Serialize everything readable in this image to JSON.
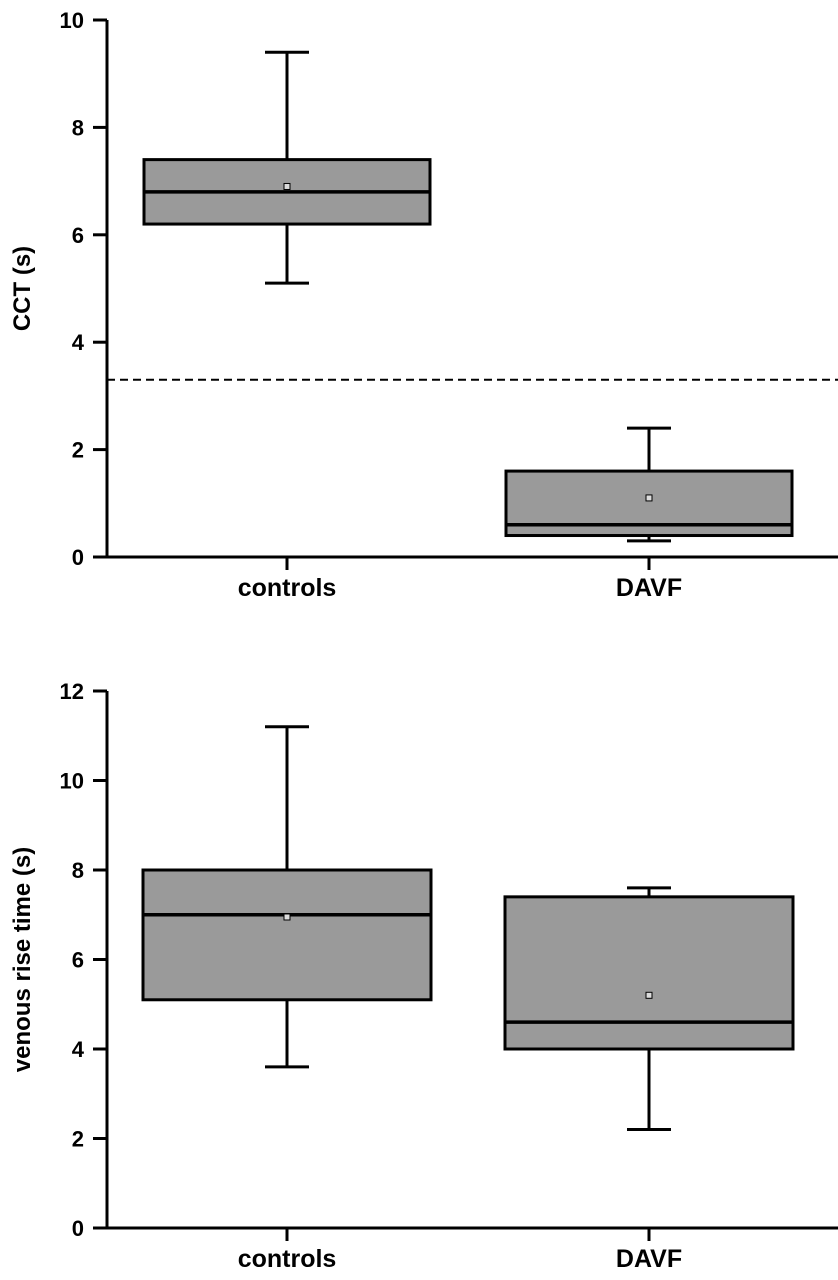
{
  "colors": {
    "box_fill": "#9a9a9a",
    "stroke": "#000000",
    "background": "#ffffff"
  },
  "chart_data": [
    {
      "type": "box",
      "title": "",
      "ylabel": "CCT (s)",
      "xlabel": "",
      "ylim": [
        0,
        10
      ],
      "yticks": [
        0,
        2,
        4,
        6,
        8,
        10
      ],
      "tick_labels": [
        "0",
        "2",
        "4",
        "6",
        "8",
        "10"
      ],
      "categories": [
        "controls",
        "DAVF"
      ],
      "boxes": [
        {
          "category": "controls",
          "whisker_low": 5.1,
          "q1": 6.2,
          "median": 6.8,
          "q3": 7.4,
          "whisker_high": 9.4,
          "mean": 6.9
        },
        {
          "category": "DAVF",
          "whisker_low": 0.3,
          "q1": 0.4,
          "median": 0.6,
          "q3": 1.6,
          "whisker_high": 2.4,
          "mean": 1.1
        }
      ],
      "reference_line": {
        "y": 3.3,
        "style": "dashed"
      },
      "grid": false,
      "legend": "none"
    },
    {
      "type": "box",
      "title": "",
      "ylabel": "venous rise time (s)",
      "xlabel": "",
      "ylim": [
        0,
        12
      ],
      "yticks": [
        0,
        2,
        4,
        6,
        8,
        10,
        12
      ],
      "tick_labels": [
        "0",
        "2",
        "4",
        "6",
        "8",
        "10",
        "12"
      ],
      "categories": [
        "controls",
        "DAVF"
      ],
      "boxes": [
        {
          "category": "controls",
          "whisker_low": 3.6,
          "q1": 5.1,
          "median": 7.0,
          "q3": 8.0,
          "whisker_high": 11.2,
          "mean": 6.95
        },
        {
          "category": "DAVF",
          "whisker_low": 2.2,
          "q1": 4.0,
          "median": 4.6,
          "q3": 7.4,
          "whisker_high": 7.6,
          "mean": 5.2
        }
      ],
      "grid": false,
      "legend": "none"
    }
  ]
}
